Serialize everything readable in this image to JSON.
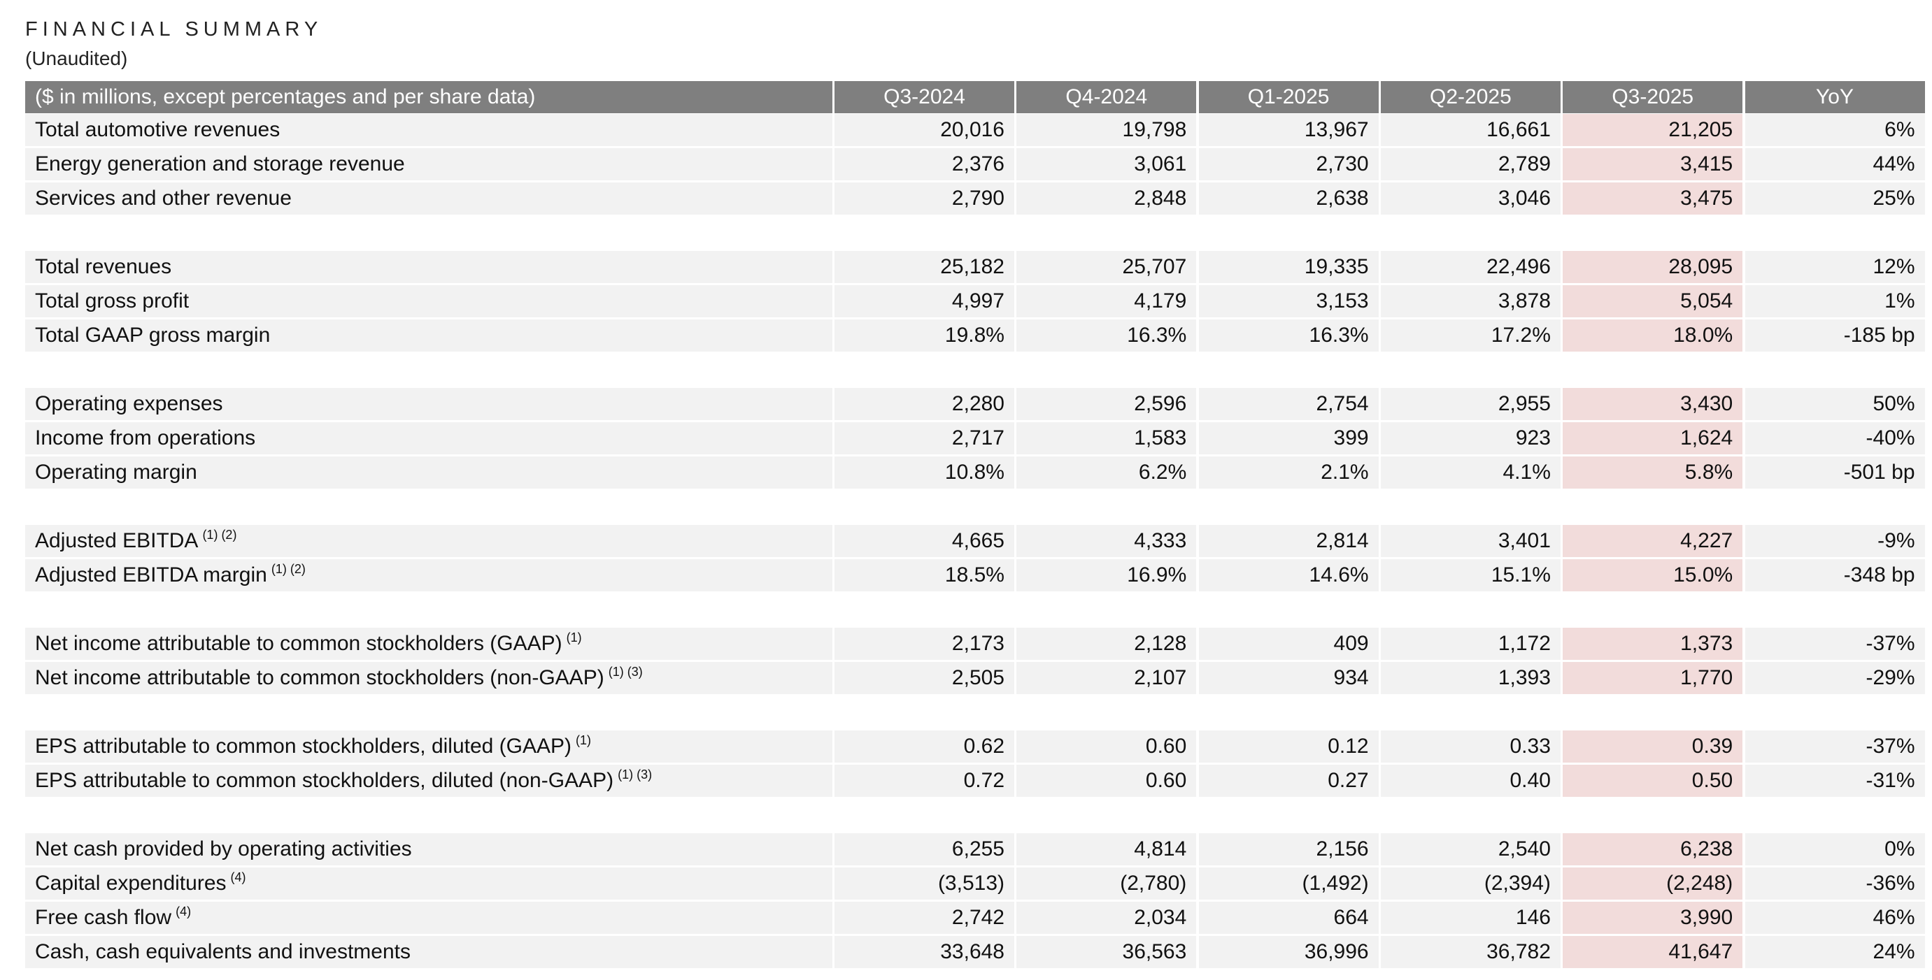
{
  "header": {
    "title": "FINANCIAL SUMMARY",
    "subtitle": "(Unaudited)"
  },
  "table": {
    "columns": [
      "($ in millions, except percentages and per share data)",
      "Q3-2024",
      "Q4-2024",
      "Q1-2025",
      "Q2-2025",
      "Q3-2025",
      "YoY"
    ],
    "sections": [
      [
        {
          "label": "Total automotive revenues",
          "cells": [
            "20,016",
            "19,798",
            "13,967",
            "16,661",
            "21,205",
            "6%"
          ]
        },
        {
          "label": "Energy generation and storage revenue",
          "cells": [
            "2,376",
            "3,061",
            "2,730",
            "2,789",
            "3,415",
            "44%"
          ]
        },
        {
          "label": "Services and other revenue",
          "cells": [
            "2,790",
            "2,848",
            "2,638",
            "3,046",
            "3,475",
            "25%"
          ]
        }
      ],
      [
        {
          "label": "Total revenues",
          "cells": [
            "25,182",
            "25,707",
            "19,335",
            "22,496",
            "28,095",
            "12%"
          ]
        },
        {
          "label": "Total gross profit",
          "cells": [
            "4,997",
            "4,179",
            "3,153",
            "3,878",
            "5,054",
            "1%"
          ]
        },
        {
          "label": "Total GAAP gross margin",
          "cells": [
            "19.8%",
            "16.3%",
            "16.3%",
            "17.2%",
            "18.0%",
            "-185 bp"
          ]
        }
      ],
      [
        {
          "label": "Operating expenses",
          "cells": [
            "2,280",
            "2,596",
            "2,754",
            "2,955",
            "3,430",
            "50%"
          ]
        },
        {
          "label": "Income from operations",
          "cells": [
            "2,717",
            "1,583",
            "399",
            "923",
            "1,624",
            "-40%"
          ]
        },
        {
          "label": "Operating margin",
          "cells": [
            "10.8%",
            "6.2%",
            "2.1%",
            "4.1%",
            "5.8%",
            "-501 bp"
          ]
        }
      ],
      [
        {
          "label": "Adjusted EBITDA",
          "note": "(1) (2)",
          "cells": [
            "4,665",
            "4,333",
            "2,814",
            "3,401",
            "4,227",
            "-9%"
          ]
        },
        {
          "label": "Adjusted EBITDA margin",
          "note": "(1) (2)",
          "cells": [
            "18.5%",
            "16.9%",
            "14.6%",
            "15.1%",
            "15.0%",
            "-348 bp"
          ]
        }
      ],
      [
        {
          "label": "Net income attributable to common stockholders (GAAP)",
          "note": "(1)",
          "cells": [
            "2,173",
            "2,128",
            "409",
            "1,172",
            "1,373",
            "-37%"
          ]
        },
        {
          "label": "Net income attributable to common stockholders (non-GAAP)",
          "note": "(1) (3)",
          "cells": [
            "2,505",
            "2,107",
            "934",
            "1,393",
            "1,770",
            "-29%"
          ]
        }
      ],
      [
        {
          "label": "EPS attributable to common stockholders, diluted (GAAP)",
          "note": "(1)",
          "cells": [
            "0.62",
            "0.60",
            "0.12",
            "0.33",
            "0.39",
            "-37%"
          ]
        },
        {
          "label": "EPS attributable to common stockholders, diluted (non-GAAP)",
          "note": "(1) (3)",
          "cells": [
            "0.72",
            "0.60",
            "0.27",
            "0.40",
            "0.50",
            "-31%"
          ]
        }
      ],
      [
        {
          "label": "Net cash provided by operating activities",
          "cells": [
            "6,255",
            "4,814",
            "2,156",
            "2,540",
            "6,238",
            "0%"
          ]
        },
        {
          "label": "Capital expenditures",
          "note": "(4)",
          "cells": [
            "(3,513)",
            "(2,780)",
            "(1,492)",
            "(2,394)",
            "(2,248)",
            "-36%"
          ]
        },
        {
          "label": "Free cash flow",
          "note": "(4)",
          "cells": [
            "2,742",
            "2,034",
            "664",
            "146",
            "3,990",
            "46%"
          ]
        },
        {
          "label": "Cash, cash equivalents and investments",
          "cells": [
            "33,648",
            "36,563",
            "36,996",
            "36,782",
            "41,647",
            "24%"
          ]
        }
      ]
    ]
  }
}
